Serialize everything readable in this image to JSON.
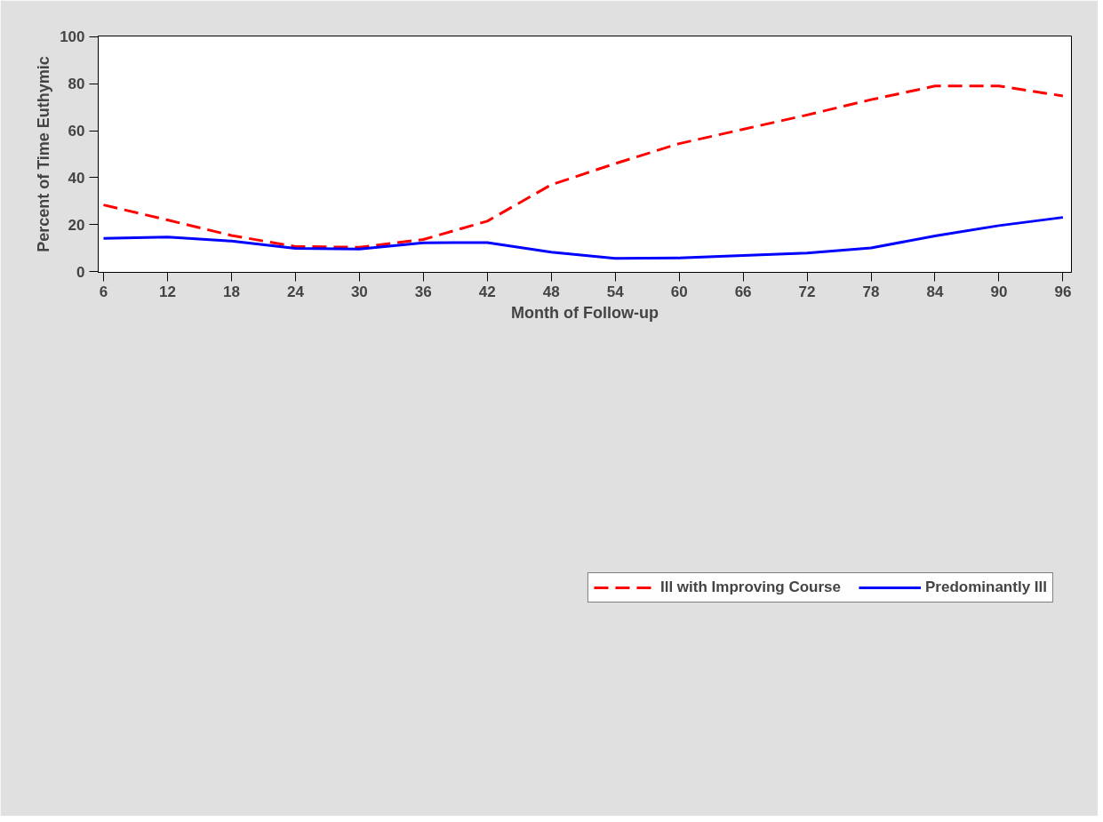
{
  "chart_data": {
    "type": "line",
    "xlabel": "Month of Follow-up",
    "ylabel": "Percent of Time Euthymic",
    "x": [
      6,
      12,
      18,
      24,
      30,
      36,
      42,
      48,
      54,
      60,
      66,
      72,
      78,
      84,
      90,
      96
    ],
    "xlim": [
      5.5,
      96.8
    ],
    "ylim": [
      -0.3,
      100.3
    ],
    "xticks": [
      6,
      12,
      18,
      24,
      30,
      36,
      42,
      48,
      54,
      60,
      66,
      72,
      78,
      84,
      90,
      96
    ],
    "yticks": [
      0,
      20,
      40,
      60,
      80,
      100
    ],
    "grid": false,
    "legend": "bottom",
    "marker": "none",
    "series": [
      {
        "name": "Ill with Improving Course",
        "color": "#ff0000",
        "line_style": "dashed",
        "values": [
          28.4,
          22.0,
          15.4,
          10.7,
          10.4,
          13.7,
          21.5,
          37.0,
          46.0,
          54.5,
          60.6,
          66.7,
          73.2,
          79.0,
          79.0,
          74.8
        ]
      },
      {
        "name": "Predominantly Ill",
        "color": "#0000ff",
        "line_style": "solid",
        "values": [
          14.2,
          14.7,
          13.0,
          9.9,
          9.6,
          12.3,
          12.4,
          8.3,
          5.7,
          5.8,
          6.9,
          7.9,
          10.1,
          15.2,
          19.6,
          23.1
        ]
      }
    ]
  }
}
